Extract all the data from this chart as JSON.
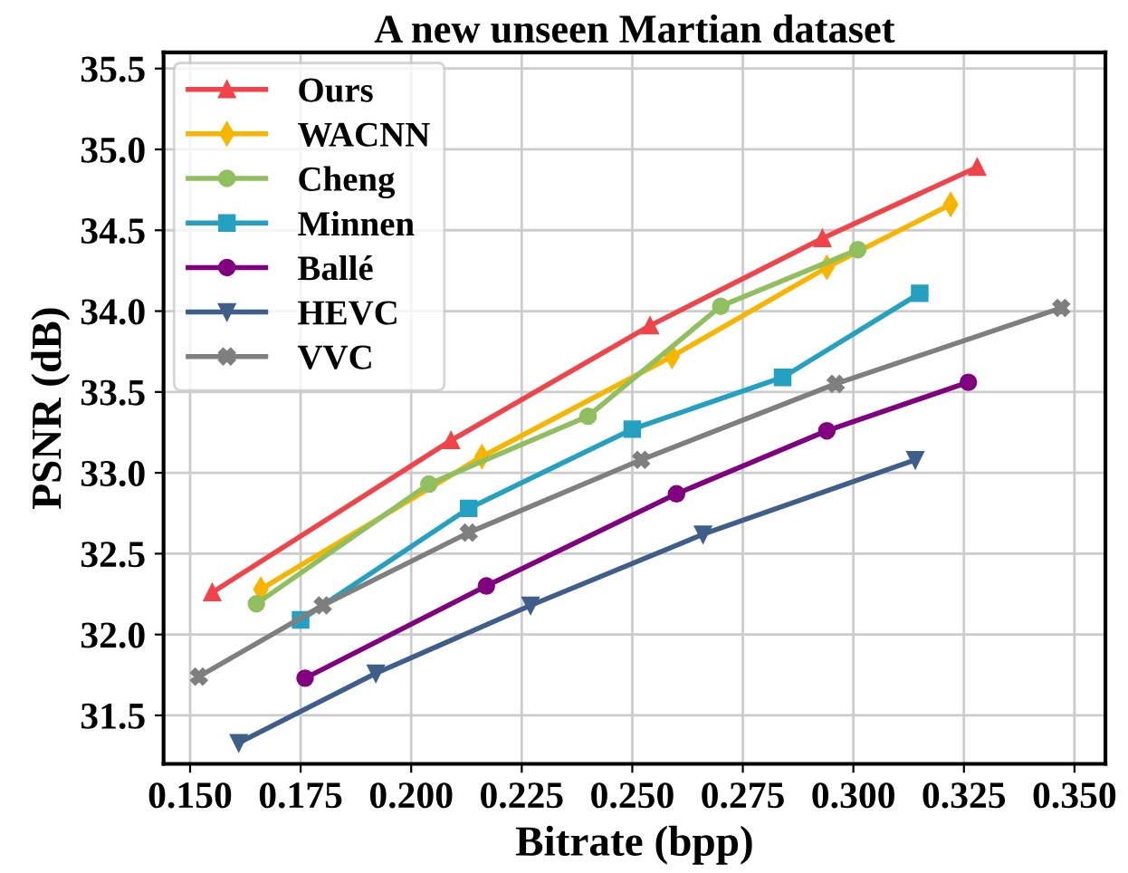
{
  "chart_data": {
    "type": "line",
    "title": "A new unseen Martian dataset",
    "xlabel": "Bitrate (bpp)",
    "ylabel": "PSNR (dB)",
    "xlim": [
      0.144,
      0.357
    ],
    "ylim": [
      31.2,
      35.6
    ],
    "xticks": [
      {
        "value": 0.15,
        "label": "0.150"
      },
      {
        "value": 0.175,
        "label": "0.175"
      },
      {
        "value": 0.2,
        "label": "0.200"
      },
      {
        "value": 0.225,
        "label": "0.225"
      },
      {
        "value": 0.25,
        "label": "0.250"
      },
      {
        "value": 0.275,
        "label": "0.275"
      },
      {
        "value": 0.3,
        "label": "0.300"
      },
      {
        "value": 0.325,
        "label": "0.325"
      },
      {
        "value": 0.35,
        "label": "0.350"
      }
    ],
    "yticks": [
      31.5,
      {
        "value": 32,
        "label": "32.0"
      },
      32.5,
      {
        "value": 33,
        "label": "33.0"
      },
      33.5,
      {
        "value": 34,
        "label": "34.0"
      },
      34.5,
      {
        "value": 35,
        "label": "35.0"
      },
      35.5
    ],
    "grid": true,
    "legend": "top left",
    "line_style": "solid",
    "series": [
      {
        "name": "Ours",
        "color": "#f0444a",
        "marker": "triangle",
        "x": [
          0.155,
          0.209,
          0.254,
          0.293,
          0.328
        ],
        "values": [
          32.26,
          33.2,
          33.91,
          34.45,
          34.89
        ]
      },
      {
        "name": "WACNN",
        "color": "#f7b500",
        "marker": "diamond",
        "x": [
          0.166,
          0.216,
          0.259,
          0.294,
          0.322
        ],
        "values": [
          32.28,
          33.1,
          33.72,
          34.27,
          34.66
        ]
      },
      {
        "name": "Cheng",
        "color": "#8fbf5f",
        "marker": "circle",
        "x": [
          0.165,
          0.204,
          0.24,
          0.27,
          0.301
        ],
        "values": [
          32.19,
          32.93,
          33.35,
          34.03,
          34.38
        ]
      },
      {
        "name": "Minnen",
        "color": "#24a0c0",
        "marker": "square",
        "x": [
          0.175,
          0.213,
          0.25,
          0.284,
          0.315
        ],
        "values": [
          32.09,
          32.78,
          33.27,
          33.59,
          34.11
        ]
      },
      {
        "name": "Ballé",
        "color": "#800080",
        "marker": "circle",
        "x": [
          0.176,
          0.217,
          0.26,
          0.294,
          0.326
        ],
        "values": [
          31.73,
          32.3,
          32.87,
          33.26,
          33.56
        ]
      },
      {
        "name": "HEVC",
        "color": "#3f5f8a",
        "marker": "triangle_down",
        "x": [
          0.161,
          0.192,
          0.227,
          0.266,
          0.314
        ],
        "values": [
          31.33,
          31.76,
          32.18,
          32.62,
          33.08
        ]
      },
      {
        "name": "VVC",
        "color": "#7f7f7f",
        "marker": "cross",
        "x": [
          0.152,
          0.18,
          0.213,
          0.252,
          0.296,
          0.347
        ],
        "values": [
          31.74,
          32.18,
          32.63,
          33.08,
          33.55,
          34.02
        ]
      }
    ]
  }
}
